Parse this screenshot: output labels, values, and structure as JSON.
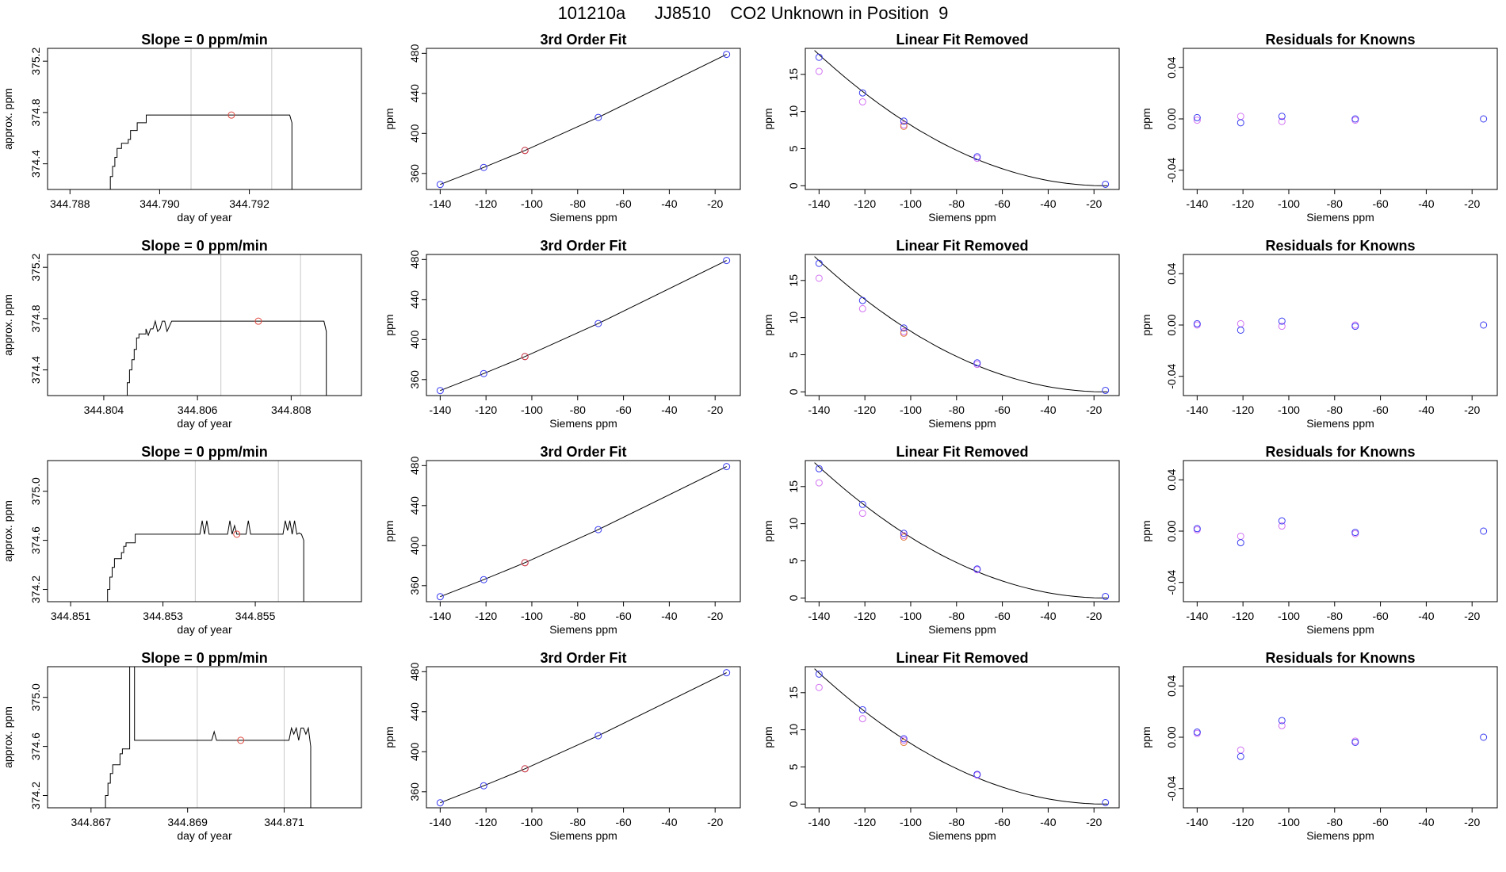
{
  "title": "101210a      JJ8510    CO2 Unknown in Position  9",
  "colors": {
    "line": "#000000",
    "unknown_point": "#e0463c",
    "blue_point": "#3a3cf0",
    "magenta_point": "#d272f2",
    "orange_point": "#e0783c",
    "marker_line": "#c8c8c8"
  },
  "panel_titles": {
    "timeseries": "Slope =  0  ppm/min",
    "fit": "3rd Order Fit",
    "linear_removed": "Linear Fit Removed",
    "residuals": "Residuals for Knowns"
  },
  "axis_labels": {
    "day_of_year": "day of year",
    "approx_ppm": "approx. ppm",
    "siemens_ppm": "Siemens ppm",
    "ppm": "ppm"
  },
  "chart_data": [
    {
      "type": "line",
      "panel": "timeseries",
      "row": 1,
      "title": "Slope =  0  ppm/min",
      "xlabel": "day of year",
      "ylabel": "approx. ppm",
      "xlim": [
        344.7875,
        344.7945
      ],
      "ylim": [
        374.2,
        375.3
      ],
      "xticks": [
        "344.788",
        "344.790",
        "344.792"
      ],
      "xtick_values": [
        344.788,
        344.79,
        344.792
      ],
      "yticks": [
        "374.4",
        "374.8",
        "375.2"
      ],
      "ytick_values": [
        374.4,
        374.8,
        375.2
      ],
      "markers": [
        344.7907,
        344.7925
      ],
      "unknown_point": {
        "x": 344.7916,
        "y": 374.78
      },
      "trace": {
        "x": [
          344.7889,
          344.7889,
          344.78895,
          344.78895,
          344.789,
          344.789,
          344.78905,
          344.78905,
          344.78915,
          344.78915,
          344.7893,
          344.7893,
          344.78935,
          344.78935,
          344.7895,
          344.7895,
          344.7897,
          344.7897,
          344.7929,
          344.79295,
          344.79295
        ],
        "y": [
          374.2,
          374.3,
          374.3,
          374.38,
          374.38,
          374.45,
          374.45,
          374.52,
          374.52,
          374.56,
          374.56,
          374.59,
          374.59,
          374.66,
          374.66,
          374.72,
          374.72,
          374.78,
          374.78,
          374.72,
          374.2
        ]
      }
    },
    {
      "type": "scatter",
      "panel": "fit",
      "row": 1,
      "title": "3rd Order Fit",
      "xlabel": "Siemens ppm",
      "ylabel": "ppm",
      "xlim": [
        -146,
        -9
      ],
      "ylim": [
        344,
        485
      ],
      "xticks": [
        -140,
        -120,
        -100,
        -80,
        -60,
        -40,
        -20
      ],
      "yticks": [
        360,
        400,
        440,
        480
      ],
      "knowns": {
        "x": [
          -140,
          -121,
          -103,
          -71,
          -15
        ],
        "y": [
          349,
          366,
          383,
          416,
          479
        ]
      },
      "unknown_point": {
        "x": -103,
        "y": 383
      }
    },
    {
      "type": "scatter",
      "panel": "linear_removed",
      "row": 1,
      "title": "Linear Fit Removed",
      "xlabel": "Siemens ppm",
      "ylabel": "ppm",
      "xlim": [
        -146,
        -9
      ],
      "ylim": [
        -0.5,
        18.5
      ],
      "xticks": [
        -140,
        -120,
        -100,
        -80,
        -60,
        -40,
        -20
      ],
      "yticks": [
        0,
        5,
        10,
        15
      ],
      "curve": {
        "x0": -15,
        "a": 0.00113
      },
      "blue": {
        "x": [
          -140,
          -121,
          -103,
          -71,
          -15
        ],
        "y": [
          17.3,
          12.5,
          8.7,
          3.9,
          0.2
        ]
      },
      "magenta": {
        "x": [
          -140,
          -121,
          -103,
          -71
        ],
        "y": [
          15.4,
          11.3,
          8.2,
          3.7
        ]
      },
      "unknown_point": {
        "x": -103,
        "y": 8.0
      }
    },
    {
      "type": "scatter",
      "panel": "residuals",
      "row": 1,
      "title": "Residuals for Knowns",
      "xlabel": "Siemens ppm",
      "ylabel": "ppm",
      "xlim": [
        -146,
        -9
      ],
      "ylim": [
        -0.055,
        0.055
      ],
      "xticks": [
        -140,
        -120,
        -100,
        -80,
        -60,
        -40,
        -20
      ],
      "yticks": [
        "-0.04",
        "0.00",
        "0.04"
      ],
      "ytick_values": [
        -0.04,
        0.0,
        0.04
      ],
      "blue": {
        "x": [
          -140,
          -121,
          -103,
          -71,
          -15
        ],
        "y": [
          0.001,
          -0.003,
          0.002,
          0.0,
          0.0
        ]
      },
      "magenta": {
        "x": [
          -140,
          -121,
          -103,
          -71
        ],
        "y": [
          -0.001,
          0.002,
          -0.002,
          -0.001
        ]
      }
    },
    {
      "type": "line",
      "panel": "timeseries",
      "row": 2,
      "title": "Slope =  0  ppm/min",
      "xlabel": "day of year",
      "ylabel": "approx. ppm",
      "xlim": [
        344.8028,
        344.8095
      ],
      "ylim": [
        374.2,
        375.3
      ],
      "xticks": [
        "344.804",
        "344.806",
        "344.808"
      ],
      "xtick_values": [
        344.804,
        344.806,
        344.808
      ],
      "yticks": [
        "374.4",
        "374.8",
        "375.2"
      ],
      "ytick_values": [
        374.4,
        374.8,
        375.2
      ],
      "markers": [
        344.8065,
        344.8082
      ],
      "unknown_point": {
        "x": 344.8073,
        "y": 374.78
      },
      "trace": {
        "x": [
          344.8044,
          344.8045,
          344.8045,
          344.80455,
          344.80455,
          344.8046,
          344.8046,
          344.80465,
          344.80465,
          344.8047,
          344.8047,
          344.80475,
          344.80475,
          344.8049,
          344.8049,
          344.80495,
          344.805,
          344.80505,
          344.8051,
          344.80515,
          344.8052,
          344.80525,
          344.8053,
          344.80535,
          344.8054,
          344.80545,
          344.8055,
          344.8087,
          344.80875,
          344.80875
        ],
        "y": [
          374.2,
          374.2,
          374.3,
          374.3,
          374.4,
          374.4,
          374.48,
          374.48,
          374.56,
          374.56,
          374.65,
          374.65,
          374.68,
          374.68,
          374.72,
          374.67,
          374.72,
          374.72,
          374.78,
          374.7,
          374.72,
          374.78,
          374.78,
          374.7,
          374.74,
          374.78,
          374.78,
          374.78,
          374.7,
          374.2
        ]
      }
    },
    {
      "type": "scatter",
      "panel": "fit",
      "row": 2,
      "title": "3rd Order Fit",
      "xlabel": "Siemens ppm",
      "ylabel": "ppm",
      "xlim": [
        -146,
        -9
      ],
      "ylim": [
        344,
        485
      ],
      "xticks": [
        -140,
        -120,
        -100,
        -80,
        -60,
        -40,
        -20
      ],
      "yticks": [
        360,
        400,
        440,
        480
      ],
      "knowns": {
        "x": [
          -140,
          -121,
          -103,
          -71,
          -15
        ],
        "y": [
          349,
          366,
          383,
          416,
          479
        ]
      },
      "unknown_point": {
        "x": -103,
        "y": 383
      }
    },
    {
      "type": "scatter",
      "panel": "linear_removed",
      "row": 2,
      "title": "Linear Fit Removed",
      "xlabel": "Siemens ppm",
      "ylabel": "ppm",
      "xlim": [
        -146,
        -9
      ],
      "ylim": [
        -0.5,
        18.5
      ],
      "xticks": [
        -140,
        -120,
        -100,
        -80,
        -60,
        -40,
        -20
      ],
      "yticks": [
        0,
        5,
        10,
        15
      ],
      "curve": {
        "x0": -15,
        "a": 0.00113
      },
      "blue": {
        "x": [
          -140,
          -121,
          -103,
          -71,
          -15
        ],
        "y": [
          17.3,
          12.3,
          8.6,
          3.9,
          0.2
        ]
      },
      "magenta": {
        "x": [
          -140,
          -121,
          -103,
          -71
        ],
        "y": [
          15.3,
          11.2,
          8.1,
          3.7
        ]
      },
      "unknown_point": {
        "x": -103,
        "y": 7.9
      }
    },
    {
      "type": "scatter",
      "panel": "residuals",
      "row": 2,
      "title": "Residuals for Knowns",
      "xlabel": "Siemens ppm",
      "ylabel": "ppm",
      "xlim": [
        -146,
        -9
      ],
      "ylim": [
        -0.055,
        0.055
      ],
      "xticks": [
        -140,
        -120,
        -100,
        -80,
        -60,
        -40,
        -20
      ],
      "yticks": [
        "-0.04",
        "0.00",
        "0.04"
      ],
      "ytick_values": [
        -0.04,
        0.0,
        0.04
      ],
      "blue": {
        "x": [
          -140,
          -121,
          -103,
          -71,
          -15
        ],
        "y": [
          0.001,
          -0.004,
          0.003,
          -0.001,
          0.0
        ]
      },
      "magenta": {
        "x": [
          -140,
          -121,
          -103,
          -71
        ],
        "y": [
          0.0,
          0.001,
          -0.001,
          0.0
        ]
      }
    },
    {
      "type": "line",
      "panel": "timeseries",
      "row": 3,
      "title": "Slope =  0  ppm/min",
      "xlabel": "day of year",
      "ylabel": "approx. ppm",
      "xlim": [
        344.8505,
        344.8573
      ],
      "ylim": [
        374.1,
        375.25
      ],
      "xticks": [
        "344.851",
        "344.853",
        "344.855"
      ],
      "xtick_values": [
        344.851,
        344.853,
        344.855
      ],
      "yticks": [
        "374.2",
        "374.6",
        "375.0"
      ],
      "ytick_values": [
        374.2,
        374.6,
        375.0
      ],
      "markers": [
        344.8537,
        344.8555
      ],
      "unknown_point": {
        "x": 344.8546,
        "y": 374.65
      },
      "trace": {
        "x": [
          344.8518,
          344.8518,
          344.85185,
          344.85185,
          344.8519,
          344.8519,
          344.85195,
          344.85195,
          344.8521,
          344.8521,
          344.85215,
          344.85215,
          344.8522,
          344.8522,
          344.8524,
          344.8524,
          344.8538,
          344.85385,
          344.8539,
          344.85395,
          344.854,
          344.8544,
          344.85445,
          344.8545,
          344.85455,
          344.8546,
          344.8548,
          344.85485,
          344.8549,
          344.85495,
          344.855,
          344.8556,
          344.85565,
          344.8557,
          344.85575,
          344.8558,
          344.85585,
          344.8559,
          344.85595,
          344.856,
          344.85605,
          344.85605
        ],
        "y": [
          374.1,
          374.2,
          374.2,
          374.3,
          374.3,
          374.38,
          374.38,
          374.45,
          374.45,
          374.5,
          374.5,
          374.55,
          374.55,
          374.58,
          374.58,
          374.65,
          374.65,
          374.76,
          374.65,
          374.76,
          374.65,
          374.65,
          374.76,
          374.65,
          374.72,
          374.65,
          374.65,
          374.76,
          374.65,
          374.65,
          374.65,
          374.65,
          374.76,
          374.68,
          374.76,
          374.65,
          374.76,
          374.65,
          374.66,
          374.65,
          374.6,
          374.1
        ]
      }
    },
    {
      "type": "scatter",
      "panel": "fit",
      "row": 3,
      "title": "3rd Order Fit",
      "xlabel": "Siemens ppm",
      "ylabel": "ppm",
      "xlim": [
        -146,
        -9
      ],
      "ylim": [
        344,
        485
      ],
      "xticks": [
        -140,
        -120,
        -100,
        -80,
        -60,
        -40,
        -20
      ],
      "yticks": [
        360,
        400,
        440,
        480
      ],
      "knowns": {
        "x": [
          -140,
          -121,
          -103,
          -71,
          -15
        ],
        "y": [
          349,
          366,
          383,
          416,
          479
        ]
      },
      "unknown_point": {
        "x": -103,
        "y": 383
      }
    },
    {
      "type": "scatter",
      "panel": "linear_removed",
      "row": 3,
      "title": "Linear Fit Removed",
      "xlabel": "Siemens ppm",
      "ylabel": "ppm",
      "xlim": [
        -146,
        -9
      ],
      "ylim": [
        -0.5,
        18.5
      ],
      "xticks": [
        -140,
        -120,
        -100,
        -80,
        -60,
        -40,
        -20
      ],
      "yticks": [
        0,
        5,
        10,
        15
      ],
      "curve": {
        "x0": -15,
        "a": 0.00113
      },
      "blue": {
        "x": [
          -140,
          -121,
          -103,
          -71,
          -15
        ],
        "y": [
          17.4,
          12.6,
          8.7,
          3.9,
          0.2
        ]
      },
      "magenta": {
        "x": [
          -140,
          -121,
          -103,
          -71
        ],
        "y": [
          15.5,
          11.4,
          8.4,
          3.8
        ]
      },
      "unknown_point": {
        "x": -103,
        "y": 8.2
      }
    },
    {
      "type": "scatter",
      "panel": "residuals",
      "row": 3,
      "title": "Residuals for Knowns",
      "xlabel": "Siemens ppm",
      "ylabel": "ppm",
      "xlim": [
        -146,
        -9
      ],
      "ylim": [
        -0.055,
        0.055
      ],
      "xticks": [
        -140,
        -120,
        -100,
        -80,
        -60,
        -40,
        -20
      ],
      "yticks": [
        "-0.04",
        "0.00",
        "0.04"
      ],
      "ytick_values": [
        -0.04,
        0.0,
        0.04
      ],
      "blue": {
        "x": [
          -140,
          -121,
          -103,
          -71,
          -15
        ],
        "y": [
          0.002,
          -0.009,
          0.008,
          -0.001,
          0.0
        ]
      },
      "magenta": {
        "x": [
          -140,
          -121,
          -103,
          -71
        ],
        "y": [
          0.001,
          -0.004,
          0.004,
          -0.002
        ]
      }
    },
    {
      "type": "line",
      "panel": "timeseries",
      "row": 4,
      "title": "Slope =  0  ppm/min",
      "xlabel": "day of year",
      "ylabel": "approx. ppm",
      "xlim": [
        344.8661,
        344.8726
      ],
      "ylim": [
        374.1,
        375.25
      ],
      "xticks": [
        "344.867",
        "344.869",
        "344.871"
      ],
      "xtick_values": [
        344.867,
        344.869,
        344.871
      ],
      "yticks": [
        "374.2",
        "374.6",
        "375.0"
      ],
      "ytick_values": [
        374.2,
        374.6,
        375.0
      ],
      "markers": [
        344.8692,
        344.871
      ],
      "unknown_point": {
        "x": 344.8701,
        "y": 374.65
      },
      "trace": {
        "x": [
          344.8673,
          344.8673,
          344.86735,
          344.86735,
          344.8674,
          344.8674,
          344.86745,
          344.86745,
          344.8676,
          344.8676,
          344.86765,
          344.86765,
          344.8678,
          344.8678,
          344.86785,
          344.86785,
          344.8679,
          344.8679,
          344.8695,
          344.86955,
          344.8696,
          344.8711,
          344.87115,
          344.8712,
          344.87125,
          344.8713,
          344.87135,
          344.8714,
          344.87145,
          344.8715,
          344.87155,
          344.87155
        ],
        "y": [
          374.1,
          374.2,
          374.2,
          374.3,
          374.3,
          374.38,
          374.38,
          374.45,
          374.45,
          374.54,
          374.54,
          374.58,
          374.58,
          375.25,
          375.25,
          375.25,
          375.25,
          374.65,
          374.65,
          374.72,
          374.65,
          374.65,
          374.75,
          374.7,
          374.75,
          374.65,
          374.75,
          374.75,
          374.7,
          374.75,
          374.6,
          374.1
        ]
      }
    },
    {
      "type": "scatter",
      "panel": "fit",
      "row": 4,
      "title": "3rd Order Fit",
      "xlabel": "Siemens ppm",
      "ylabel": "ppm",
      "xlim": [
        -146,
        -9
      ],
      "ylim": [
        344,
        485
      ],
      "xticks": [
        -140,
        -120,
        -100,
        -80,
        -60,
        -40,
        -20
      ],
      "yticks": [
        360,
        400,
        440,
        480
      ],
      "knowns": {
        "x": [
          -140,
          -121,
          -103,
          -71,
          -15
        ],
        "y": [
          349,
          366,
          383,
          416,
          479
        ]
      },
      "unknown_point": {
        "x": -103,
        "y": 383
      }
    },
    {
      "type": "scatter",
      "panel": "linear_removed",
      "row": 4,
      "title": "Linear Fit Removed",
      "xlabel": "Siemens ppm",
      "ylabel": "ppm",
      "xlim": [
        -146,
        -9
      ],
      "ylim": [
        -0.5,
        18.5
      ],
      "xticks": [
        -140,
        -120,
        -100,
        -80,
        -60,
        -40,
        -20
      ],
      "yticks": [
        0,
        5,
        10,
        15
      ],
      "curve": {
        "x0": -15,
        "a": 0.00113
      },
      "blue": {
        "x": [
          -140,
          -121,
          -103,
          -71,
          -15
        ],
        "y": [
          17.5,
          12.7,
          8.8,
          4.0,
          0.2
        ]
      },
      "magenta": {
        "x": [
          -140,
          -121,
          -103,
          -71
        ],
        "y": [
          15.7,
          11.5,
          8.6,
          3.9
        ]
      },
      "unknown_point": {
        "x": -103,
        "y": 8.3
      }
    },
    {
      "type": "scatter",
      "panel": "residuals",
      "row": 4,
      "title": "Residuals for Knowns",
      "xlabel": "Siemens ppm",
      "ylabel": "ppm",
      "xlim": [
        -146,
        -9
      ],
      "ylim": [
        -0.055,
        0.055
      ],
      "xticks": [
        -140,
        -120,
        -100,
        -80,
        -60,
        -40,
        -20
      ],
      "yticks": [
        "-0.04",
        "0.00",
        "0.04"
      ],
      "ytick_values": [
        -0.04,
        0.0,
        0.04
      ],
      "blue": {
        "x": [
          -140,
          -121,
          -103,
          -71,
          -15
        ],
        "y": [
          0.004,
          -0.015,
          0.013,
          -0.004,
          0.0
        ]
      },
      "magenta": {
        "x": [
          -140,
          -121,
          -103,
          -71
        ],
        "y": [
          0.003,
          -0.01,
          0.009,
          -0.003
        ]
      }
    }
  ]
}
